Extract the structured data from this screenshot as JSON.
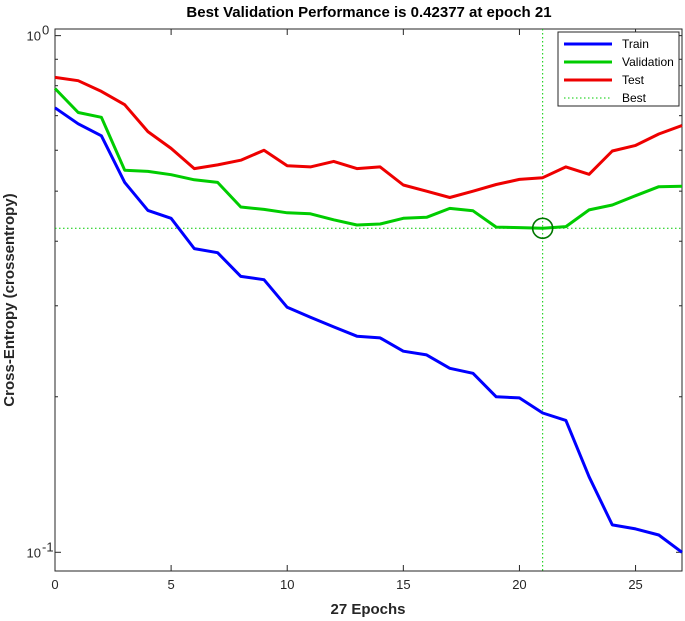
{
  "chart_data": {
    "type": "line",
    "title": "Best Validation Performance is 0.42377 at epoch 21",
    "xlabel": "27 Epochs",
    "ylabel": "Cross-Entropy  (crossentropy)",
    "yscale": "log",
    "xlim": [
      0,
      27
    ],
    "ylim": [
      0.092,
      1.03
    ],
    "xticks": [
      0,
      5,
      10,
      15,
      20,
      25
    ],
    "xtick_labels": [
      "0",
      "5",
      "10",
      "15",
      "20",
      "25"
    ],
    "yticks": [
      {
        "value": 1.0,
        "base": "10",
        "exp": "0"
      },
      {
        "value": 0.1,
        "base": "10",
        "exp": "-1"
      }
    ],
    "x": [
      0,
      1,
      2,
      3,
      4,
      5,
      6,
      7,
      8,
      9,
      10,
      11,
      12,
      13,
      14,
      15,
      16,
      17,
      18,
      19,
      20,
      21,
      22,
      23,
      24,
      25,
      26,
      27
    ],
    "series": [
      {
        "name": "Train",
        "color": "#0000ff",
        "style": "solid",
        "values": [
          0.725,
          0.675,
          0.64,
          0.52,
          0.459,
          0.443,
          0.387,
          0.38,
          0.342,
          0.337,
          0.298,
          0.285,
          0.273,
          0.262,
          0.26,
          0.245,
          0.241,
          0.227,
          0.222,
          0.2,
          0.199,
          0.186,
          0.18,
          0.14,
          0.113,
          0.111,
          0.108,
          0.1
        ]
      },
      {
        "name": "Validation",
        "color": "#00cc00",
        "style": "solid",
        "values": [
          0.79,
          0.71,
          0.695,
          0.549,
          0.546,
          0.538,
          0.526,
          0.52,
          0.466,
          0.461,
          0.454,
          0.452,
          0.44,
          0.43,
          0.432,
          0.443,
          0.445,
          0.463,
          0.458,
          0.426,
          0.425,
          0.424,
          0.427,
          0.46,
          0.47,
          0.49,
          0.51,
          0.511
        ]
      },
      {
        "name": "Test",
        "color": "#ee0000",
        "style": "solid",
        "values": [
          0.83,
          0.818,
          0.78,
          0.735,
          0.652,
          0.605,
          0.553,
          0.562,
          0.574,
          0.6,
          0.56,
          0.557,
          0.571,
          0.553,
          0.557,
          0.514,
          0.5,
          0.486,
          0.5,
          0.515,
          0.527,
          0.531,
          0.557,
          0.539,
          0.598,
          0.613,
          0.645,
          0.67
        ]
      }
    ],
    "best": {
      "name": "Best",
      "color": "#00cc00",
      "style": "dotted",
      "epoch": 21,
      "value": 0.42377
    },
    "legend": {
      "position": "top-right",
      "entries": [
        "Train",
        "Validation",
        "Test",
        "Best"
      ]
    },
    "grid": false
  }
}
